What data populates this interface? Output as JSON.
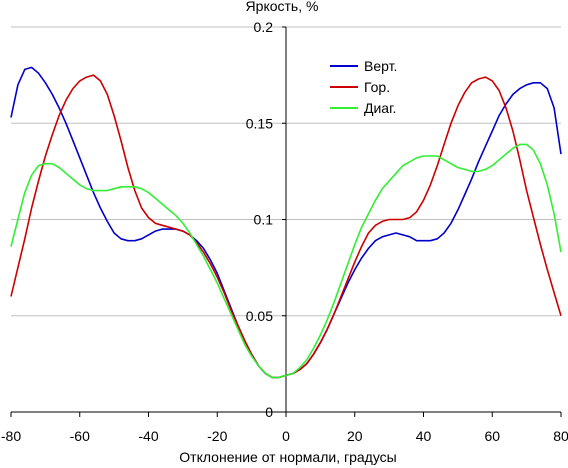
{
  "chart_data": {
    "type": "line",
    "title": "",
    "xlabel": "Отклонение от нормали, градусы",
    "ylabel": "Яркость, %",
    "xlim": [
      -80,
      80
    ],
    "ylim": [
      0,
      0.2
    ],
    "xticks": [
      -80,
      -60,
      -40,
      -20,
      0,
      20,
      40,
      60,
      80
    ],
    "xtick_labels": [
      "-80",
      "-60",
      "-40",
      "-20",
      "0",
      "20",
      "40",
      "60",
      "80"
    ],
    "yticks": [
      0,
      0.05,
      0.1,
      0.15,
      0.2
    ],
    "ytick_labels": [
      "0",
      "0.05",
      "0.1",
      "0.15",
      "0.2"
    ],
    "grid": "horizontal",
    "legend_position": "top-right",
    "series": [
      {
        "name": "Верт.",
        "color": "#0000cc",
        "x": [
          -80,
          -78,
          -76,
          -74,
          -72,
          -70,
          -68,
          -66,
          -64,
          -62,
          -60,
          -58,
          -56,
          -54,
          -52,
          -50,
          -48,
          -46,
          -44,
          -42,
          -40,
          -38,
          -36,
          -34,
          -32,
          -30,
          -28,
          -26,
          -24,
          -22,
          -20,
          -18,
          -16,
          -14,
          -12,
          -10,
          -8,
          -6,
          -4,
          -2,
          0,
          2,
          4,
          6,
          8,
          10,
          12,
          14,
          16,
          18,
          20,
          22,
          24,
          26,
          28,
          30,
          32,
          34,
          36,
          38,
          40,
          42,
          44,
          46,
          48,
          50,
          52,
          54,
          56,
          58,
          60,
          62,
          64,
          66,
          68,
          70,
          72,
          74,
          76,
          78,
          80
        ],
        "values": [
          0.153,
          0.17,
          0.178,
          0.179,
          0.176,
          0.171,
          0.165,
          0.158,
          0.15,
          0.141,
          0.132,
          0.123,
          0.114,
          0.106,
          0.099,
          0.093,
          0.09,
          0.089,
          0.089,
          0.09,
          0.092,
          0.094,
          0.095,
          0.095,
          0.095,
          0.094,
          0.092,
          0.089,
          0.085,
          0.079,
          0.072,
          0.063,
          0.054,
          0.045,
          0.037,
          0.03,
          0.024,
          0.02,
          0.018,
          0.018,
          0.019,
          0.02,
          0.022,
          0.025,
          0.03,
          0.036,
          0.043,
          0.051,
          0.059,
          0.067,
          0.074,
          0.08,
          0.085,
          0.089,
          0.091,
          0.092,
          0.093,
          0.092,
          0.091,
          0.089,
          0.089,
          0.089,
          0.09,
          0.093,
          0.098,
          0.105,
          0.113,
          0.121,
          0.13,
          0.138,
          0.146,
          0.154,
          0.16,
          0.165,
          0.168,
          0.17,
          0.171,
          0.171,
          0.168,
          0.158,
          0.134
        ]
      },
      {
        "name": "Гор.",
        "color": "#cc0000",
        "x": [
          -80,
          -78,
          -76,
          -74,
          -72,
          -70,
          -68,
          -66,
          -64,
          -62,
          -60,
          -58,
          -56,
          -54,
          -52,
          -50,
          -48,
          -46,
          -44,
          -42,
          -40,
          -38,
          -36,
          -34,
          -32,
          -30,
          -28,
          -26,
          -24,
          -22,
          -20,
          -18,
          -16,
          -14,
          -12,
          -10,
          -8,
          -6,
          -4,
          -2,
          0,
          2,
          4,
          6,
          8,
          10,
          12,
          14,
          16,
          18,
          20,
          22,
          24,
          26,
          28,
          30,
          32,
          34,
          36,
          38,
          40,
          42,
          44,
          46,
          48,
          50,
          52,
          54,
          56,
          58,
          60,
          62,
          64,
          66,
          68,
          70,
          72,
          74,
          76,
          78,
          80
        ],
        "values": [
          0.06,
          0.075,
          0.09,
          0.106,
          0.12,
          0.133,
          0.144,
          0.154,
          0.162,
          0.168,
          0.172,
          0.174,
          0.175,
          0.172,
          0.165,
          0.154,
          0.141,
          0.127,
          0.115,
          0.106,
          0.101,
          0.098,
          0.097,
          0.096,
          0.095,
          0.094,
          0.092,
          0.088,
          0.083,
          0.077,
          0.07,
          0.062,
          0.053,
          0.045,
          0.037,
          0.03,
          0.024,
          0.02,
          0.018,
          0.018,
          0.019,
          0.02,
          0.022,
          0.025,
          0.03,
          0.036,
          0.043,
          0.051,
          0.06,
          0.069,
          0.078,
          0.086,
          0.093,
          0.097,
          0.099,
          0.1,
          0.1,
          0.1,
          0.101,
          0.104,
          0.11,
          0.118,
          0.128,
          0.139,
          0.15,
          0.159,
          0.166,
          0.171,
          0.173,
          0.174,
          0.172,
          0.167,
          0.158,
          0.146,
          0.131,
          0.115,
          0.101,
          0.087,
          0.074,
          0.062,
          0.05
        ]
      },
      {
        "name": "Диаг.",
        "color": "#33ee33",
        "x": [
          -80,
          -78,
          -76,
          -74,
          -72,
          -70,
          -68,
          -66,
          -64,
          -62,
          -60,
          -58,
          -56,
          -54,
          -52,
          -50,
          -48,
          -46,
          -44,
          -42,
          -40,
          -38,
          -36,
          -34,
          -32,
          -30,
          -28,
          -26,
          -24,
          -22,
          -20,
          -18,
          -16,
          -14,
          -12,
          -10,
          -8,
          -6,
          -4,
          -2,
          0,
          2,
          4,
          6,
          8,
          10,
          12,
          14,
          16,
          18,
          20,
          22,
          24,
          26,
          28,
          30,
          32,
          34,
          36,
          38,
          40,
          42,
          44,
          46,
          48,
          50,
          52,
          54,
          56,
          58,
          60,
          62,
          64,
          66,
          68,
          70,
          72,
          74,
          76,
          78,
          80
        ],
        "values": [
          0.086,
          0.1,
          0.114,
          0.123,
          0.128,
          0.129,
          0.129,
          0.127,
          0.124,
          0.121,
          0.118,
          0.116,
          0.115,
          0.115,
          0.115,
          0.116,
          0.117,
          0.117,
          0.117,
          0.116,
          0.114,
          0.111,
          0.108,
          0.105,
          0.102,
          0.098,
          0.093,
          0.087,
          0.081,
          0.074,
          0.067,
          0.059,
          0.051,
          0.043,
          0.035,
          0.029,
          0.024,
          0.02,
          0.018,
          0.018,
          0.019,
          0.02,
          0.023,
          0.027,
          0.033,
          0.04,
          0.048,
          0.057,
          0.067,
          0.077,
          0.087,
          0.096,
          0.103,
          0.11,
          0.116,
          0.12,
          0.124,
          0.128,
          0.13,
          0.132,
          0.133,
          0.133,
          0.133,
          0.131,
          0.129,
          0.127,
          0.126,
          0.125,
          0.125,
          0.126,
          0.128,
          0.131,
          0.134,
          0.137,
          0.139,
          0.139,
          0.136,
          0.129,
          0.118,
          0.103,
          0.083
        ]
      }
    ]
  }
}
